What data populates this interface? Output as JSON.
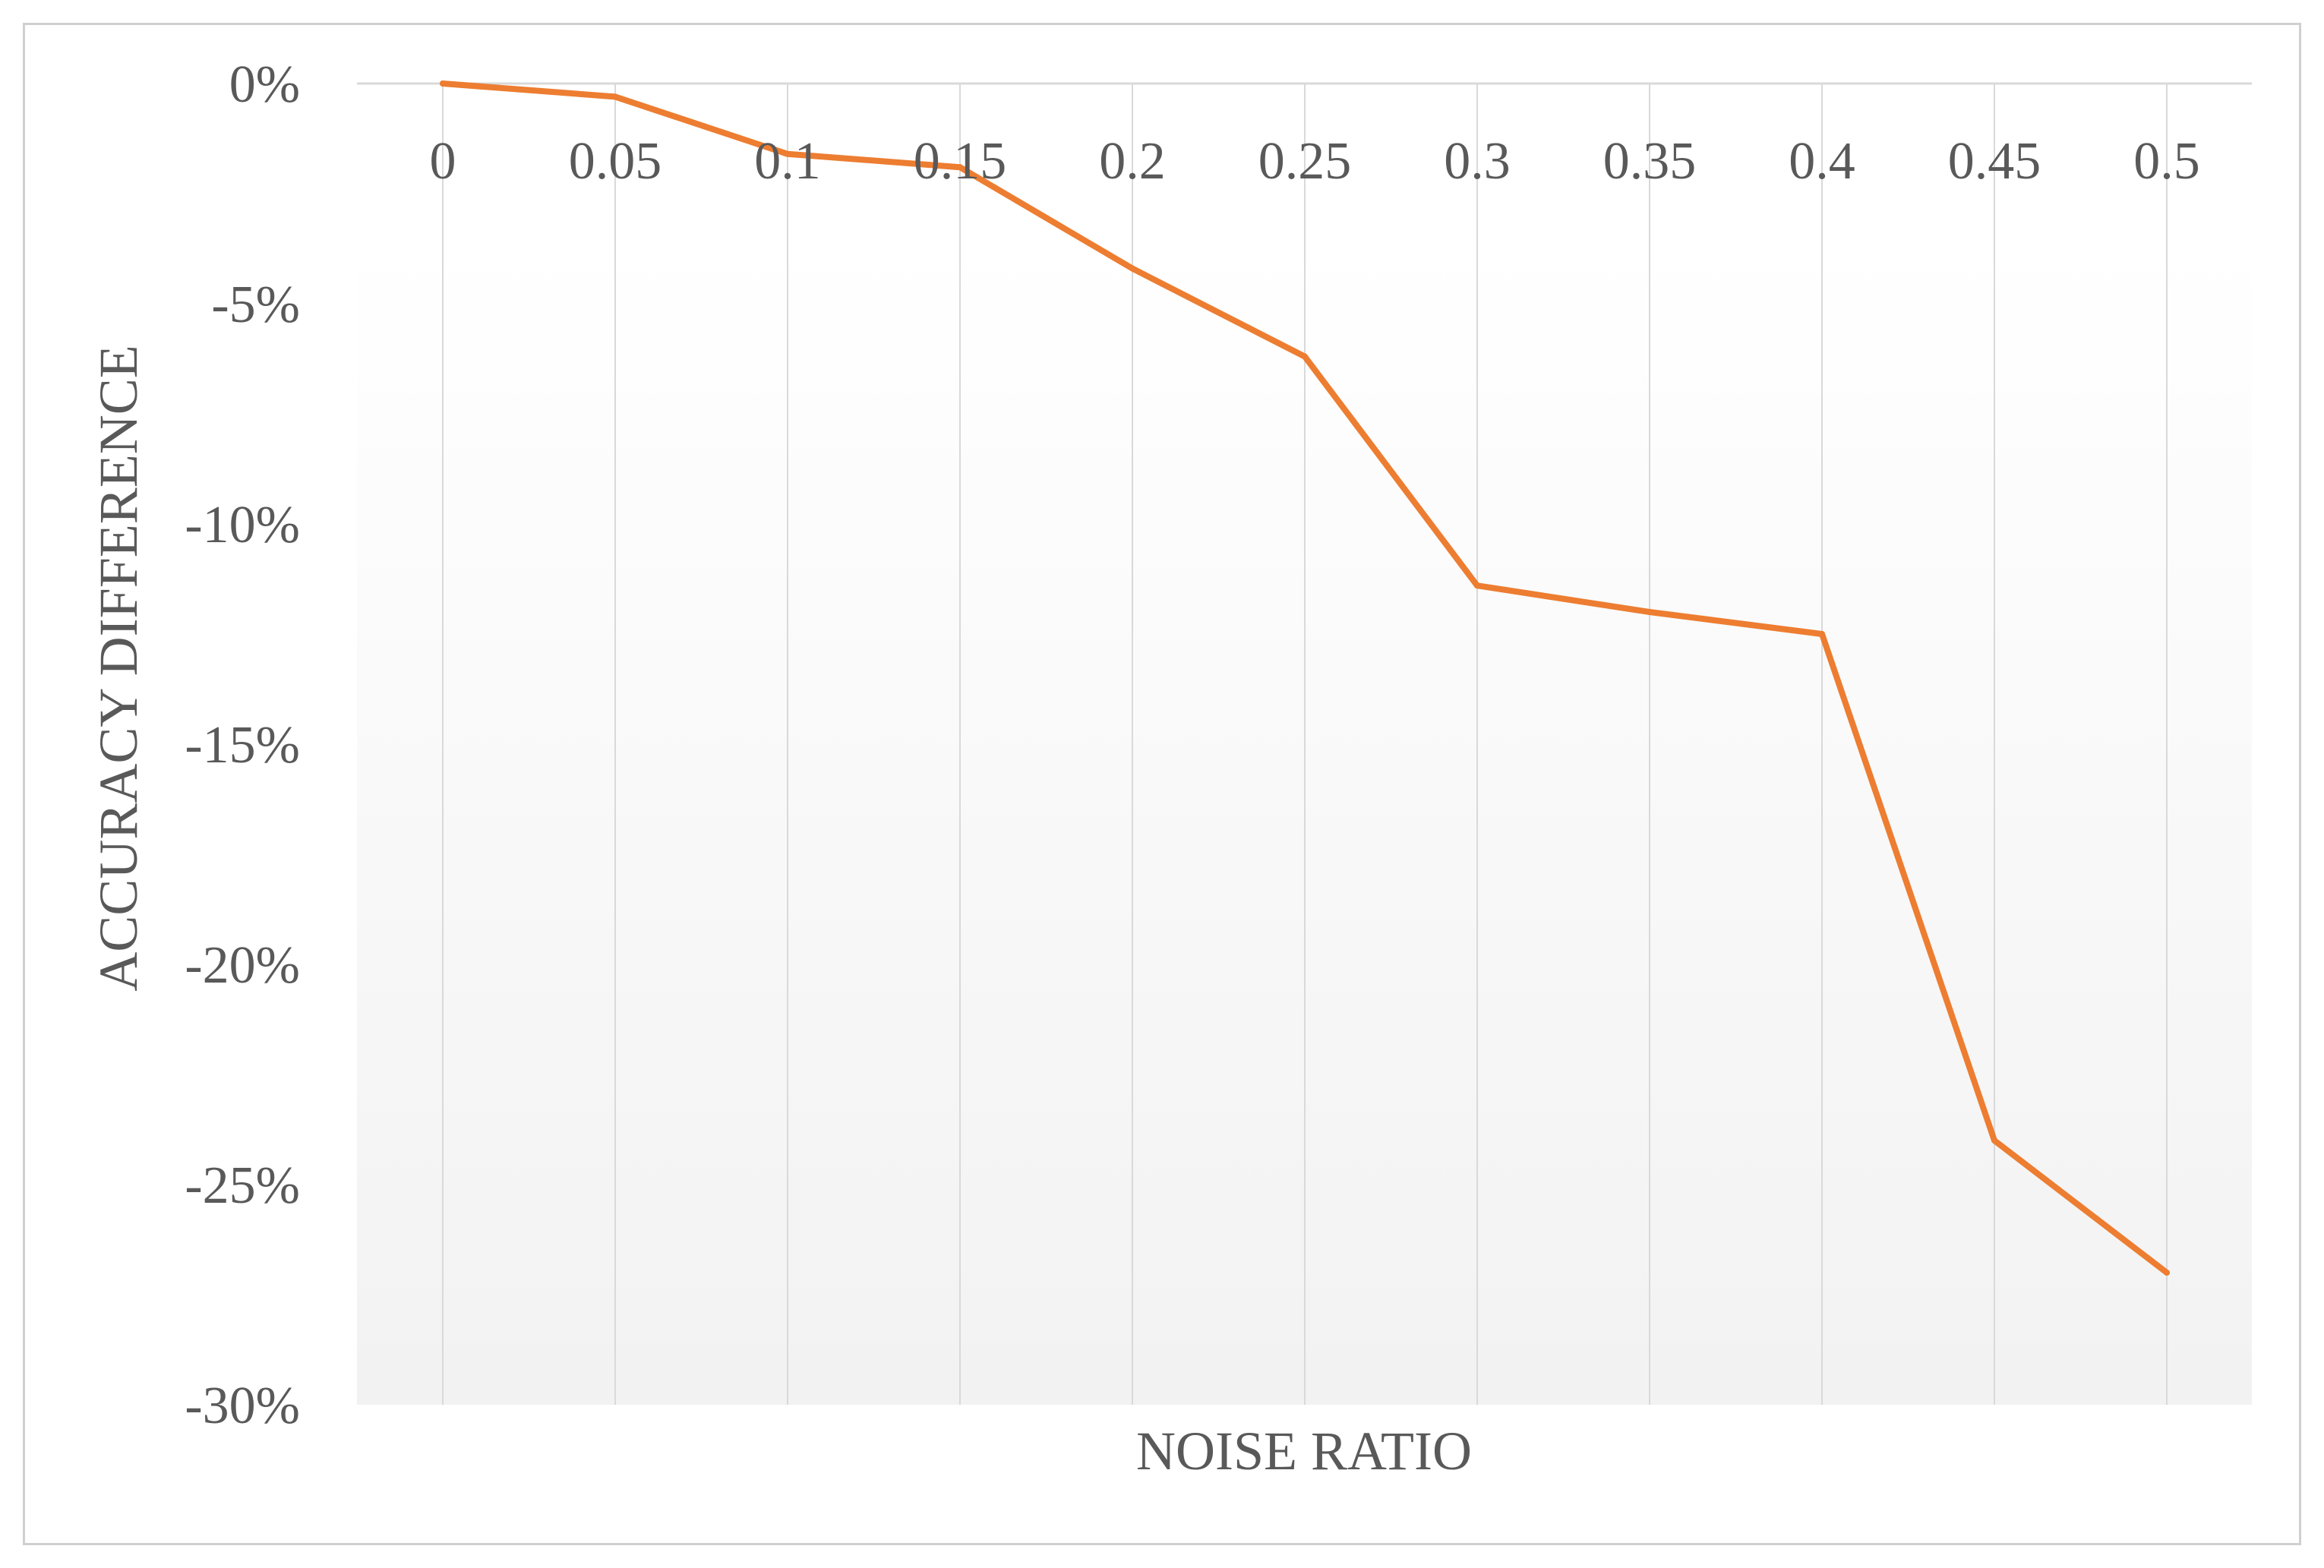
{
  "chart_data": {
    "type": "line",
    "title": "",
    "xlabel": "NOISE RATIO",
    "ylabel": "ACCURACY DIFFERENCE",
    "x_axis_position": "top",
    "categories": [
      "0",
      "0.05",
      "0.1",
      "0.15",
      "0.2",
      "0.25",
      "0.3",
      "0.35",
      "0.4",
      "0.45",
      "0.5"
    ],
    "y_ticks": [
      0,
      -5,
      -10,
      -15,
      -20,
      -25,
      -30
    ],
    "y_tick_labels": [
      "0%",
      "-5%",
      "-10%",
      "-15%",
      "-20%",
      "-25%",
      "-30%"
    ],
    "ylim": [
      -30,
      0
    ],
    "grid": "vertical",
    "series": [
      {
        "values": [
          0,
          -0.3,
          -1.6,
          -1.9,
          -4.2,
          -6.2,
          -11.4,
          -12.0,
          -12.5,
          -24.0,
          -27.0
        ],
        "color": "#ED7D31"
      }
    ],
    "colors": {
      "line": "#ED7D31",
      "text": "#595959",
      "gridline": "#d9d9d9",
      "plot_fill_top": "#ffffff",
      "plot_fill_bottom": "#f2f2f2"
    }
  }
}
